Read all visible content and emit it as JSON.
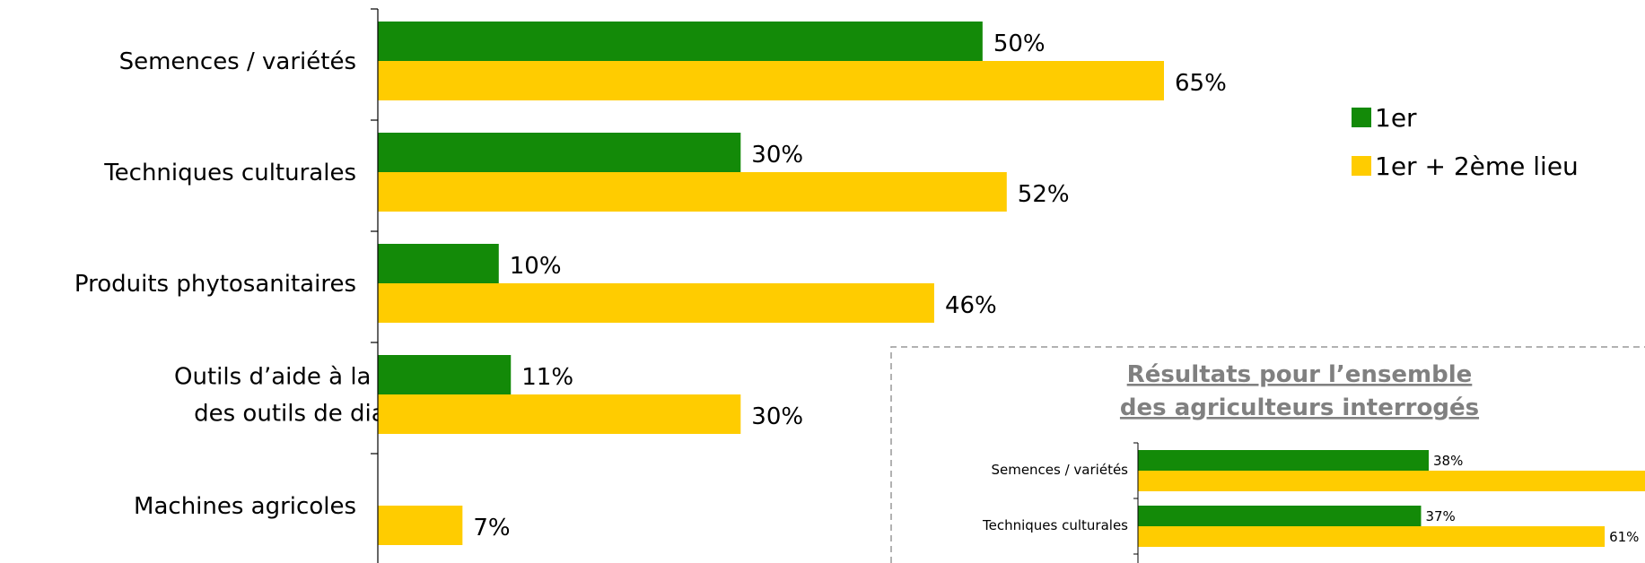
{
  "chart_data": [
    {
      "type": "bar",
      "orientation": "horizontal",
      "categories": [
        "Semences / variétés",
        "Techniques culturales",
        "Produits phytosanitaires",
        "Outils d’aide à la décision / des outils de diagnostic",
        "Machines agricoles"
      ],
      "category_lines": [
        [
          "Semences / variétés"
        ],
        [
          "Techniques culturales"
        ],
        [
          "Produits phytosanitaires"
        ],
        [
          "Outils d’aide à la décision /",
          "des outils de diagnostic"
        ],
        [
          "Machines agricoles"
        ]
      ],
      "series": [
        {
          "name": "1er",
          "color": "#138a08",
          "values": [
            50,
            30,
            10,
            11,
            null
          ],
          "labels": [
            "50%",
            "30%",
            "10%",
            "11%",
            ""
          ]
        },
        {
          "name": "1er + 2ème lieu",
          "color": "#ffcc00",
          "values": [
            65,
            52,
            46,
            30,
            7
          ],
          "labels": [
            "65%",
            "52%",
            "46%",
            "30%",
            "7%"
          ]
        }
      ],
      "xlim": [
        0,
        100
      ],
      "legend_position": "top-right",
      "grid": false
    },
    {
      "type": "bar",
      "orientation": "horizontal",
      "title_lines": [
        "Résultats pour l’ensemble",
        "des agriculteurs interrogés"
      ],
      "categories": [
        "Semences / variétés",
        "Techniques culturales"
      ],
      "series": [
        {
          "name": "1er",
          "color": "#138a08",
          "values": [
            38,
            37
          ],
          "labels": [
            "38%",
            "37%"
          ]
        },
        {
          "name": "1er + 2ème lieu",
          "color": "#ffcc00",
          "values": [
            null,
            61
          ],
          "labels": [
            "",
            "61%"
          ]
        }
      ],
      "xlim": [
        0,
        100
      ],
      "grid": false
    }
  ]
}
